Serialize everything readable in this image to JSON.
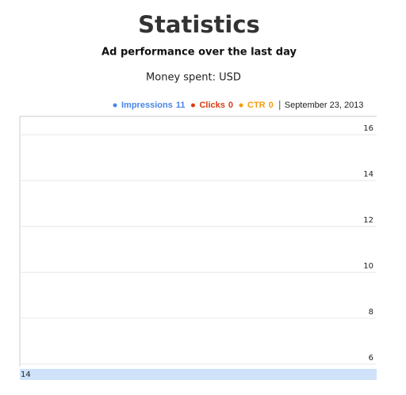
{
  "header": {
    "title": "Statistics",
    "subtitle": "Ad performance over the last day",
    "money": "Money spent: USD"
  },
  "legend": [
    {
      "name": "Impressions",
      "total": 11,
      "color": "#4a86e8"
    },
    {
      "name": "Clicks",
      "total": 0,
      "color": "#dc3912"
    },
    {
      "name": "CTR",
      "total": 0,
      "color": "#f39c12"
    }
  ],
  "date": "September 23, 2013",
  "chart_data": {
    "type": "line",
    "categories": [
      "14"
    ],
    "ylim": [
      6,
      16.8
    ],
    "yticks": [
      6,
      8,
      10,
      12,
      14,
      16
    ],
    "grid": true,
    "band_color": "#cfe2fa"
  }
}
